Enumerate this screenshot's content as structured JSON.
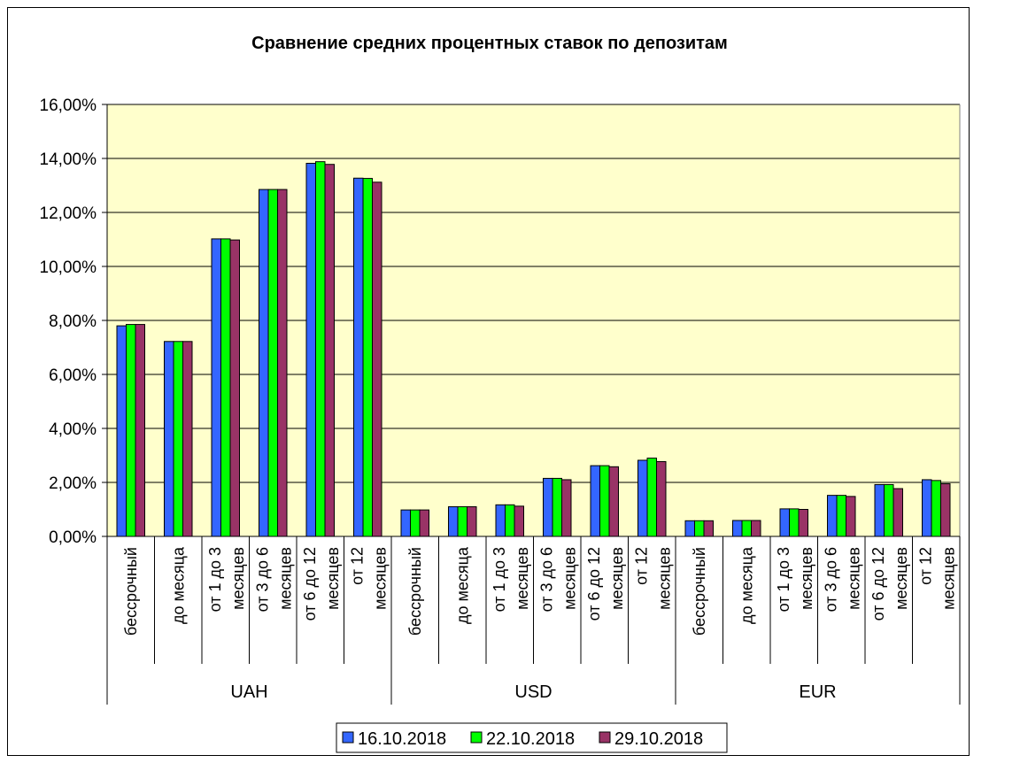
{
  "chart_data": {
    "type": "bar",
    "title": "Сравнение средних процентных ставок по депозитам",
    "xlabel": "",
    "ylabel": "",
    "ylim": [
      0,
      0.16
    ],
    "y_ticks": [
      "0,00%",
      "2,00%",
      "4,00%",
      "6,00%",
      "8,00%",
      "10,00%",
      "12,00%",
      "14,00%",
      "16,00%"
    ],
    "grid": true,
    "plot_background": "#FFFFCC",
    "legend_position": "bottom",
    "groups": [
      "UAH",
      "USD",
      "EUR"
    ],
    "category_labels": [
      [
        "бессрочный"
      ],
      [
        "до месяца"
      ],
      [
        "от 1 до 3",
        "месяцев"
      ],
      [
        "от 3 до 6",
        "месяцев"
      ],
      [
        "от 6 до 12",
        "месяцев"
      ],
      [
        "от 12",
        "месяцев"
      ]
    ],
    "categories": [
      "UAH бессрочный",
      "UAH до месяца",
      "UAH от 1 до 3 месяцев",
      "UAH от 3 до 6 месяцев",
      "UAH от 6 до 12 месяцев",
      "UAH от 12 месяцев",
      "USD бессрочный",
      "USD до месяца",
      "USD от 1 до 3 месяцев",
      "USD от 3 до 6 месяцев",
      "USD от 6 до 12 месяцев",
      "USD от 12 месяцев",
      "EUR бессрочный",
      "EUR до месяца",
      "EUR от 1 до 3 месяцев",
      "EUR от 3 до 6 месяцев",
      "EUR от 6 до 12 месяцев",
      "EUR от 12 месяцев"
    ],
    "series": [
      {
        "name": "16.10.2018",
        "color": "#3366FF",
        "values": [
          0.078,
          0.0722,
          0.1102,
          0.1285,
          0.1382,
          0.1327,
          0.0098,
          0.011,
          0.0117,
          0.0215,
          0.0262,
          0.0282,
          0.0058,
          0.0059,
          0.0102,
          0.0152,
          0.0192,
          0.021
        ]
      },
      {
        "name": "22.10.2018",
        "color": "#00FF00",
        "values": [
          0.0785,
          0.0722,
          0.1102,
          0.1285,
          0.1388,
          0.1326,
          0.0098,
          0.011,
          0.0117,
          0.0215,
          0.0262,
          0.029,
          0.0058,
          0.0059,
          0.0102,
          0.0152,
          0.0192,
          0.0207
        ]
      },
      {
        "name": "29.10.2018",
        "color": "#993366",
        "values": [
          0.0785,
          0.0722,
          0.1098,
          0.1285,
          0.1378,
          0.1312,
          0.0098,
          0.011,
          0.0112,
          0.021,
          0.0258,
          0.0277,
          0.0058,
          0.0059,
          0.01,
          0.0148,
          0.0177,
          0.0195
        ]
      }
    ]
  }
}
